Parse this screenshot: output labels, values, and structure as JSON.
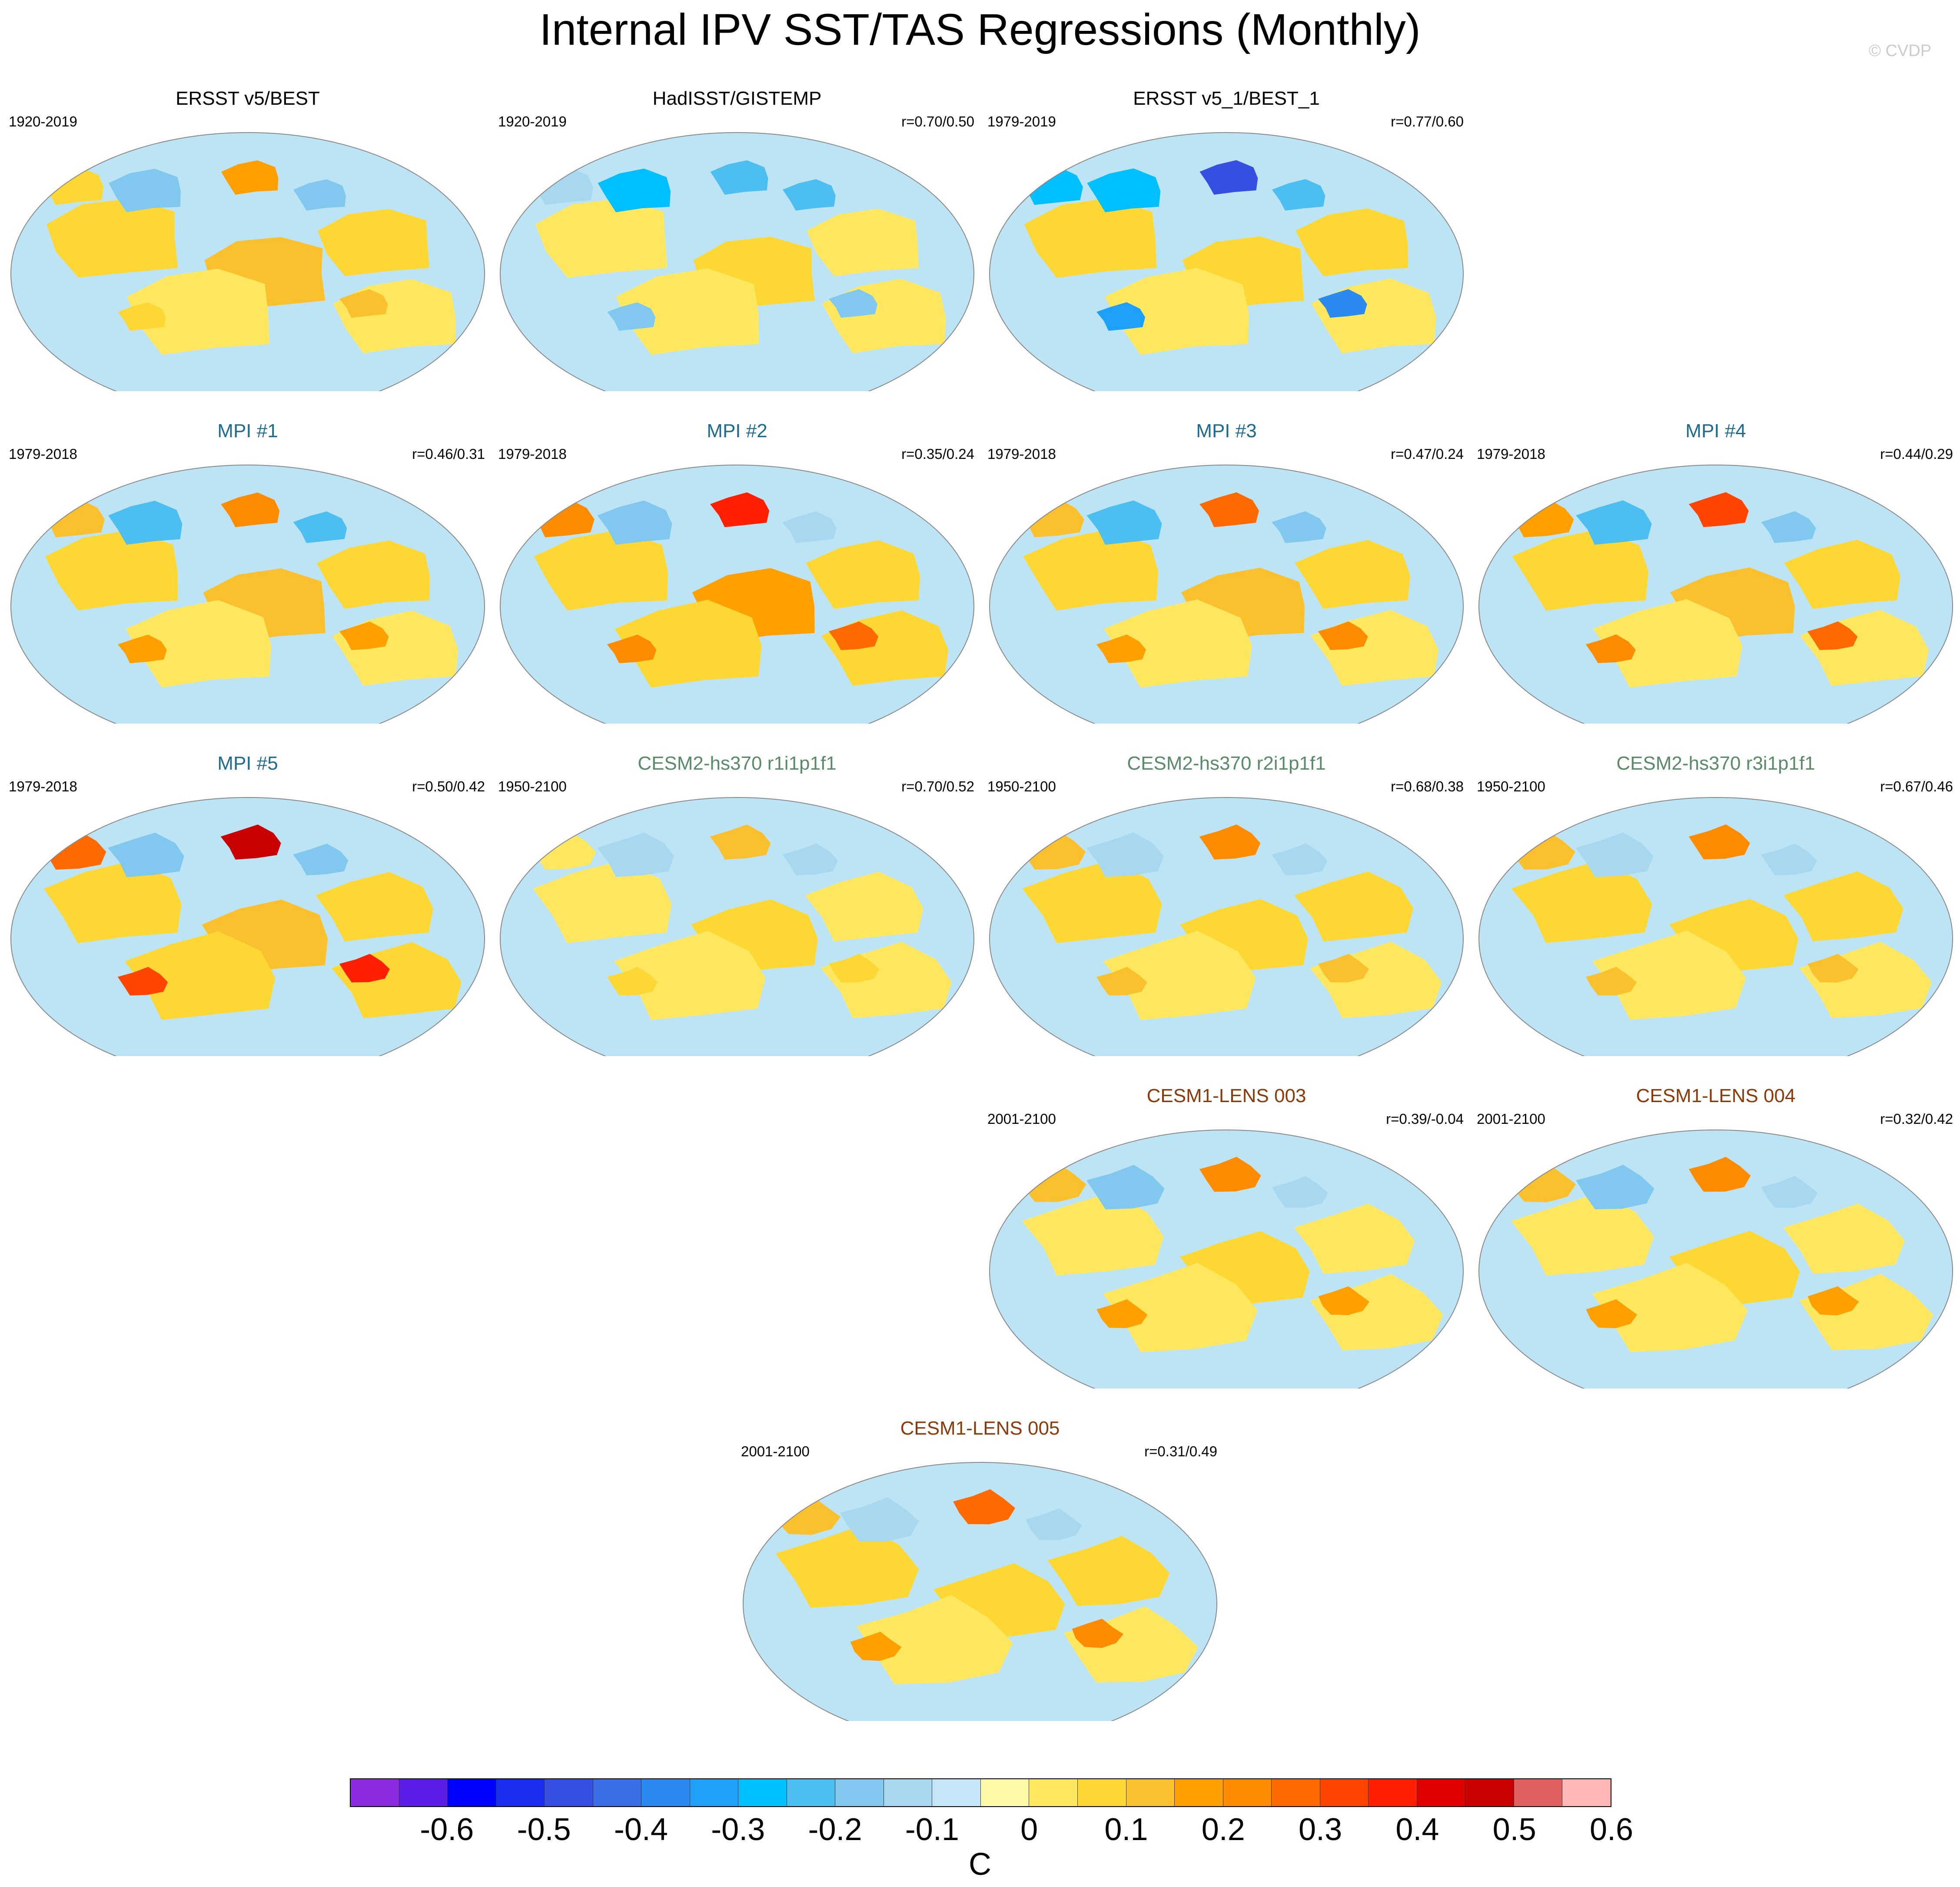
{
  "title": "Internal IPV SST/TAS Regressions (Monthly)",
  "copyright": "© CVDP",
  "colors": {
    "obs_title": "#000000",
    "mpi_title": "#1f6b8f",
    "cesm2_title": "#5a8a6a",
    "cesm1_title": "#8b3a0a",
    "ocean_neutral": "#bde4f4",
    "warm_neutral": "#fff7a8",
    "land_outline": "#7a7a7a"
  },
  "panels": [
    {
      "title": "ERSST v5/BEST",
      "period": "1920-2019",
      "corr": "",
      "group": "obs",
      "pattern": {
        "warm": 0.45,
        "cold": 0.35,
        "land": 0.2
      }
    },
    {
      "title": "HadISST/GISTEMP",
      "period": "1920-2019",
      "corr": "r=0.70/0.50",
      "group": "obs",
      "pattern": {
        "warm": 0.35,
        "cold": 0.55,
        "land": -0.25
      }
    },
    {
      "title": "ERSST v5_1/BEST_1",
      "period": "1979-2019",
      "corr": "r=0.77/0.60",
      "group": "obs",
      "pattern": {
        "warm": 0.4,
        "cold": 0.5,
        "land": -0.5
      }
    },
    {
      "title": "MPI #1",
      "period": "1979-2018",
      "corr": "r=0.46/0.31",
      "group": "mpi",
      "pattern": {
        "warm": 0.5,
        "cold": 0.45,
        "land": 0.3
      }
    },
    {
      "title": "MPI #2",
      "period": "1979-2018",
      "corr": "r=0.35/0.24",
      "group": "mpi",
      "pattern": {
        "warm": 0.6,
        "cold": 0.3,
        "land": 0.45
      }
    },
    {
      "title": "MPI #3",
      "period": "1979-2018",
      "corr": "r=0.47/0.24",
      "group": "mpi",
      "pattern": {
        "warm": 0.5,
        "cold": 0.4,
        "land": 0.35
      }
    },
    {
      "title": "MPI #4",
      "period": "1979-2018",
      "corr": "r=0.44/0.29",
      "group": "mpi",
      "pattern": {
        "warm": 0.45,
        "cold": 0.4,
        "land": 0.4
      }
    },
    {
      "title": "MPI #5",
      "period": "1979-2018",
      "corr": "r=0.50/0.42",
      "group": "mpi",
      "pattern": {
        "warm": 0.55,
        "cold": 0.35,
        "land": 0.55
      }
    },
    {
      "title": "CESM2-hs370 r1i1p1f1",
      "period": "1950-2100",
      "corr": "r=0.70/0.52",
      "group": "cesm2",
      "pattern": {
        "warm": 0.3,
        "cold": 0.25,
        "land": 0.15
      }
    },
    {
      "title": "CESM2-hs370 r2i1p1f1",
      "period": "1950-2100",
      "corr": "r=0.68/0.38",
      "group": "cesm2",
      "pattern": {
        "warm": 0.4,
        "cold": 0.25,
        "land": 0.25
      }
    },
    {
      "title": "CESM2-hs370 r3i1p1f1",
      "period": "1950-2100",
      "corr": "r=0.67/0.46",
      "group": "cesm2",
      "pattern": {
        "warm": 0.4,
        "cold": 0.25,
        "land": 0.25
      }
    },
    {
      "title": "CESM1-LENS 003",
      "period": "2001-2100",
      "corr": "r=0.39/-0.04",
      "group": "cesm1",
      "pattern": {
        "warm": 0.3,
        "cold": 0.3,
        "land": 0.3
      }
    },
    {
      "title": "CESM1-LENS 004",
      "period": "2001-2100",
      "corr": "r=0.32/0.42",
      "group": "cesm1",
      "pattern": {
        "warm": 0.35,
        "cold": 0.3,
        "land": 0.3
      }
    },
    {
      "title": "CESM1-LENS 005",
      "period": "2001-2100",
      "corr": "r=0.31/0.49",
      "group": "cesm1",
      "pattern": {
        "warm": 0.4,
        "cold": 0.2,
        "land": 0.35
      }
    }
  ],
  "colorbar": {
    "unit": "C",
    "tick_labels": [
      "-0.6",
      "-0.5",
      "-0.4",
      "-0.3",
      "-0.2",
      "-0.1",
      "0",
      "0.1",
      "0.2",
      "0.3",
      "0.4",
      "0.5",
      "0.6"
    ],
    "colors": [
      "#8a2be2",
      "#5a1ee8",
      "#0000ff",
      "#1a2ef0",
      "#3550e0",
      "#3a6fe8",
      "#2a8af0",
      "#1ea0f8",
      "#00bfff",
      "#4cbff0",
      "#80c8ee",
      "#a8d8f0",
      "#c4e6f6",
      "#fffaa8",
      "#ffe860",
      "#fdd835",
      "#fbc02d",
      "#ffa000",
      "#ff8c00",
      "#ff6a00",
      "#ff4500",
      "#ff2000",
      "#e00000",
      "#c80000",
      "#e06060",
      "#ffb6b6"
    ]
  }
}
